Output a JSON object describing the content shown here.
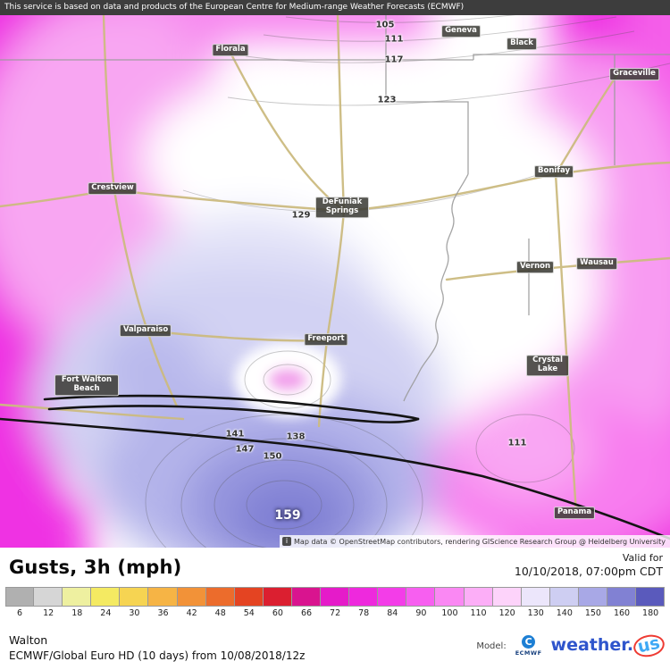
{
  "header": {
    "notice": "This service is based on data and products of the European Centre for Medium-range Weather Forecasts (ECMWF)"
  },
  "map": {
    "attribution": "Map data © OpenStreetMap contributors, rendering GIScience Research Group @ Heidelberg University",
    "info_icon": "i",
    "towns": [
      {
        "name": "Florala"
      },
      {
        "name": "Geneva"
      },
      {
        "name": "Black"
      },
      {
        "name": "Graceville"
      },
      {
        "name": "Crestview"
      },
      {
        "name": "DeFuniak Springs"
      },
      {
        "name": "Bonifay"
      },
      {
        "name": "Vernon"
      },
      {
        "name": "Wausau"
      },
      {
        "name": "Valparaiso"
      },
      {
        "name": "Freeport"
      },
      {
        "name": "Fort Walton Beach"
      },
      {
        "name": "Crystal Lake"
      },
      {
        "name": "Panama"
      }
    ],
    "contours": [
      {
        "value": "105"
      },
      {
        "value": "111"
      },
      {
        "value": "117"
      },
      {
        "value": "123"
      },
      {
        "value": "129"
      },
      {
        "value": "141"
      },
      {
        "value": "147"
      },
      {
        "value": "150"
      },
      {
        "value": "138"
      },
      {
        "value": "111"
      },
      {
        "value": "159"
      }
    ]
  },
  "panel": {
    "title": "Gusts, 3h (mph)",
    "valid_for_label": "Valid for",
    "valid_time": "10/10/2018, 07:00pm CDT",
    "region": "Walton",
    "model_label": "Model:",
    "model_line": "ECMWF/Global Euro HD (10 days) from 10/08/2018/12z",
    "ecmwf_text": "ECMWF",
    "ecmwf_icon": "C",
    "brand_weather": "weather.",
    "brand_us": "us"
  },
  "legend": {
    "values": [
      "6",
      "12",
      "18",
      "24",
      "30",
      "36",
      "42",
      "48",
      "54",
      "60",
      "66",
      "72",
      "78",
      "84",
      "90",
      "100",
      "110",
      "120",
      "130",
      "140",
      "150",
      "160",
      "180"
    ],
    "colors": [
      "#b0b0b0",
      "#d6d6d6",
      "#eef0a0",
      "#f4ea62",
      "#f6d452",
      "#f6b445",
      "#f29238",
      "#ec6c2c",
      "#e44422",
      "#db1f30",
      "#d9148f",
      "#e51bc9",
      "#ee29dd",
      "#f33de8",
      "#f75ff0",
      "#fa88f3",
      "#fcaef7",
      "#fdd3fa",
      "#ece6fb",
      "#cecef2",
      "#a8a8e6",
      "#8181d3",
      "#5a5abc"
    ]
  }
}
